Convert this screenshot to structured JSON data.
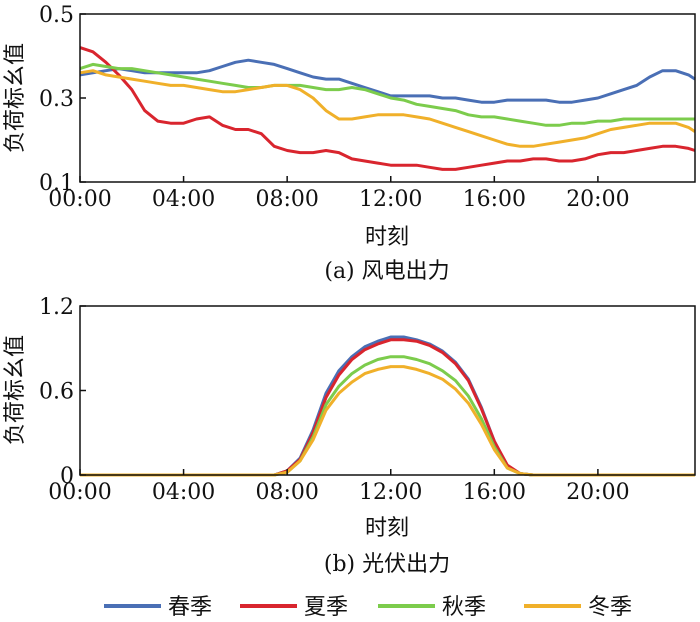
{
  "colors": {
    "spring": "#4a6fb5",
    "summer": "#d9252e",
    "autumn": "#7ccc4c",
    "winter": "#f0b02a"
  },
  "legend": [
    {
      "label": "春季",
      "color_key": "spring"
    },
    {
      "label": "夏季",
      "color_key": "summer"
    },
    {
      "label": "秋季",
      "color_key": "autumn"
    },
    {
      "label": "冬季",
      "color_key": "winter"
    }
  ],
  "chart_data": [
    {
      "type": "line",
      "caption": "(a) 风电出力",
      "xlabel": "时刻",
      "ylabel": "负荷标幺值",
      "xlim": [
        0,
        23.75
      ],
      "ylim": [
        0.1,
        0.5
      ],
      "xticks": [
        0,
        4,
        8,
        12,
        16,
        20
      ],
      "xtick_labels": [
        "00:00",
        "04:00",
        "08:00",
        "12:00",
        "16:00",
        "20:00"
      ],
      "yticks": [
        0.1,
        0.3,
        0.5
      ],
      "ytick_labels": [
        "0.1",
        "0.3",
        "0.5"
      ],
      "x": [
        0,
        0.5,
        1,
        1.5,
        2,
        2.5,
        3,
        3.5,
        4,
        4.5,
        5,
        5.5,
        6,
        6.5,
        7,
        7.5,
        8,
        8.5,
        9,
        9.5,
        10,
        10.5,
        11,
        11.5,
        12,
        12.5,
        13,
        13.5,
        14,
        14.5,
        15,
        15.5,
        16,
        16.5,
        17,
        17.5,
        18,
        18.5,
        19,
        19.5,
        20,
        20.5,
        21,
        21.5,
        22,
        22.5,
        23,
        23.5,
        23.75
      ],
      "series": [
        {
          "name": "春季",
          "color_key": "spring",
          "values": [
            0.355,
            0.36,
            0.365,
            0.37,
            0.365,
            0.36,
            0.36,
            0.36,
            0.36,
            0.36,
            0.365,
            0.375,
            0.385,
            0.39,
            0.385,
            0.38,
            0.37,
            0.36,
            0.35,
            0.345,
            0.345,
            0.335,
            0.325,
            0.315,
            0.305,
            0.305,
            0.305,
            0.305,
            0.3,
            0.3,
            0.295,
            0.29,
            0.29,
            0.295,
            0.295,
            0.295,
            0.295,
            0.29,
            0.29,
            0.295,
            0.3,
            0.31,
            0.32,
            0.33,
            0.35,
            0.365,
            0.365,
            0.355,
            0.345
          ]
        },
        {
          "name": "夏季",
          "color_key": "summer",
          "values": [
            0.42,
            0.41,
            0.385,
            0.355,
            0.32,
            0.27,
            0.245,
            0.24,
            0.24,
            0.25,
            0.255,
            0.235,
            0.225,
            0.225,
            0.215,
            0.185,
            0.175,
            0.17,
            0.17,
            0.175,
            0.17,
            0.155,
            0.15,
            0.145,
            0.14,
            0.14,
            0.14,
            0.135,
            0.13,
            0.13,
            0.135,
            0.14,
            0.145,
            0.15,
            0.15,
            0.155,
            0.155,
            0.15,
            0.15,
            0.155,
            0.165,
            0.17,
            0.17,
            0.175,
            0.18,
            0.185,
            0.185,
            0.18,
            0.175
          ]
        },
        {
          "name": "秋季",
          "color_key": "autumn",
          "values": [
            0.37,
            0.38,
            0.375,
            0.37,
            0.37,
            0.365,
            0.36,
            0.355,
            0.35,
            0.345,
            0.34,
            0.335,
            0.33,
            0.325,
            0.325,
            0.33,
            0.33,
            0.33,
            0.325,
            0.32,
            0.32,
            0.325,
            0.32,
            0.31,
            0.3,
            0.295,
            0.285,
            0.28,
            0.275,
            0.27,
            0.26,
            0.255,
            0.255,
            0.25,
            0.245,
            0.24,
            0.235,
            0.235,
            0.24,
            0.24,
            0.245,
            0.245,
            0.25,
            0.25,
            0.25,
            0.25,
            0.25,
            0.25,
            0.25
          ]
        },
        {
          "name": "冬季",
          "color_key": "winter",
          "values": [
            0.36,
            0.365,
            0.355,
            0.35,
            0.345,
            0.34,
            0.335,
            0.33,
            0.33,
            0.325,
            0.32,
            0.315,
            0.315,
            0.32,
            0.325,
            0.33,
            0.33,
            0.32,
            0.3,
            0.27,
            0.25,
            0.25,
            0.255,
            0.26,
            0.26,
            0.26,
            0.255,
            0.25,
            0.24,
            0.23,
            0.22,
            0.21,
            0.2,
            0.19,
            0.185,
            0.185,
            0.19,
            0.195,
            0.2,
            0.205,
            0.215,
            0.225,
            0.23,
            0.235,
            0.24,
            0.24,
            0.24,
            0.23,
            0.22
          ]
        }
      ]
    },
    {
      "type": "line",
      "caption": "(b) 光伏出力",
      "xlabel": "时刻",
      "ylabel": "负荷标幺值",
      "xlim": [
        0,
        23.75
      ],
      "ylim": [
        0,
        1.2
      ],
      "xticks": [
        0,
        4,
        8,
        12,
        16,
        20
      ],
      "xtick_labels": [
        "00:00",
        "04:00",
        "08:00",
        "12:00",
        "16:00",
        "20:00"
      ],
      "yticks": [
        0,
        0.6,
        1.2
      ],
      "ytick_labels": [
        "0",
        "0.6",
        "1.2"
      ],
      "x": [
        0,
        7.5,
        8,
        8.5,
        9,
        9.5,
        10,
        10.5,
        11,
        11.5,
        12,
        12.5,
        13,
        13.5,
        14,
        14.5,
        15,
        15.5,
        16,
        16.5,
        17,
        17.5,
        18,
        23.75
      ],
      "series": [
        {
          "name": "春季",
          "color_key": "spring",
          "values": [
            0,
            0,
            0.03,
            0.12,
            0.32,
            0.58,
            0.74,
            0.84,
            0.91,
            0.95,
            0.98,
            0.98,
            0.96,
            0.93,
            0.88,
            0.8,
            0.68,
            0.48,
            0.24,
            0.06,
            0.01,
            0,
            0,
            0
          ]
        },
        {
          "name": "夏季",
          "color_key": "summer",
          "values": [
            0,
            0,
            0.03,
            0.11,
            0.3,
            0.55,
            0.71,
            0.82,
            0.89,
            0.93,
            0.96,
            0.96,
            0.95,
            0.92,
            0.87,
            0.79,
            0.67,
            0.47,
            0.24,
            0.07,
            0.01,
            0,
            0,
            0
          ]
        },
        {
          "name": "秋季",
          "color_key": "autumn",
          "values": [
            0,
            0,
            0.02,
            0.1,
            0.27,
            0.5,
            0.63,
            0.72,
            0.78,
            0.82,
            0.84,
            0.84,
            0.82,
            0.79,
            0.74,
            0.67,
            0.56,
            0.4,
            0.2,
            0.05,
            0.01,
            0,
            0,
            0
          ]
        },
        {
          "name": "冬季",
          "color_key": "winter",
          "values": [
            0,
            0,
            0.02,
            0.1,
            0.25,
            0.46,
            0.58,
            0.66,
            0.72,
            0.75,
            0.77,
            0.77,
            0.75,
            0.72,
            0.68,
            0.61,
            0.51,
            0.36,
            0.18,
            0.05,
            0.01,
            0,
            0,
            0
          ]
        }
      ]
    }
  ]
}
